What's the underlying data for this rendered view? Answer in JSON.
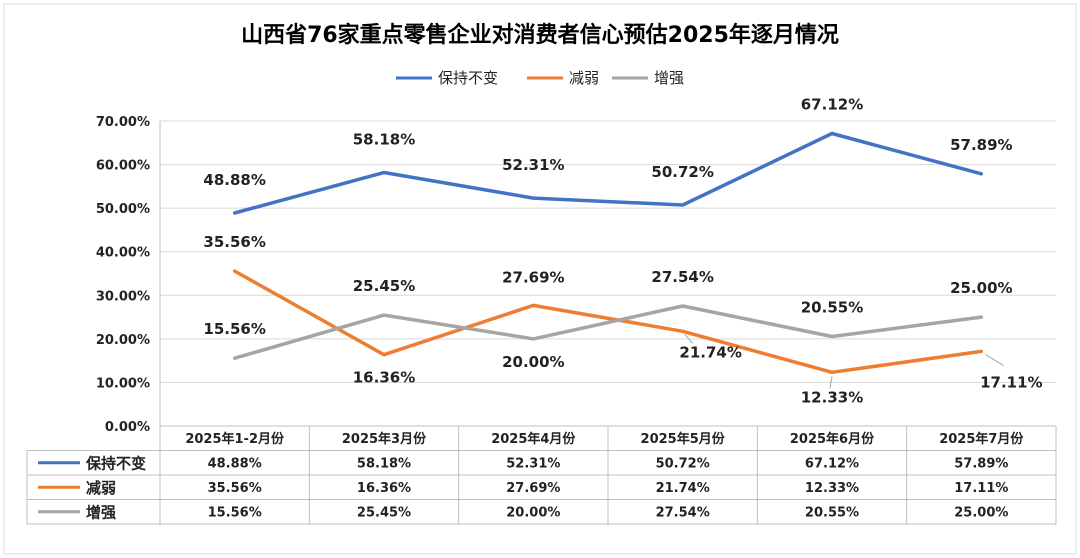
{
  "chart_data": {
    "type": "line",
    "title": "山西省76家重点零售企业对消费者信心预估2025年逐月情况",
    "categories": [
      "2025年1-2月份",
      "2025年3月份",
      "2025年4月份",
      "2025年5月份",
      "2025年6月份",
      "2025年7月份"
    ],
    "ylim": [
      0,
      70
    ],
    "yticks": [
      "0.00%",
      "10.00%",
      "20.00%",
      "30.00%",
      "40.00%",
      "50.00%",
      "60.00%",
      "70.00%"
    ],
    "grid": true,
    "legend_position": "top",
    "series": [
      {
        "name": "保持不变",
        "color": "#4472C4",
        "values": [
          48.88,
          58.18,
          52.31,
          50.72,
          67.12,
          57.89
        ],
        "labels": [
          "48.88%",
          "58.18%",
          "52.31%",
          "50.72%",
          "67.12%",
          "57.89%"
        ]
      },
      {
        "name": "减弱",
        "color": "#ED7D31",
        "values": [
          35.56,
          16.36,
          27.69,
          21.74,
          12.33,
          17.11
        ],
        "labels": [
          "35.56%",
          "16.36%",
          "27.69%",
          "21.74%",
          "12.33%",
          "17.11%"
        ]
      },
      {
        "name": "增强",
        "color": "#A5A5A5",
        "values": [
          15.56,
          25.45,
          20.0,
          27.54,
          20.55,
          25.0
        ],
        "labels": [
          "15.56%",
          "25.45%",
          "20.00%",
          "27.54%",
          "20.55%",
          "25.00%"
        ]
      }
    ]
  }
}
